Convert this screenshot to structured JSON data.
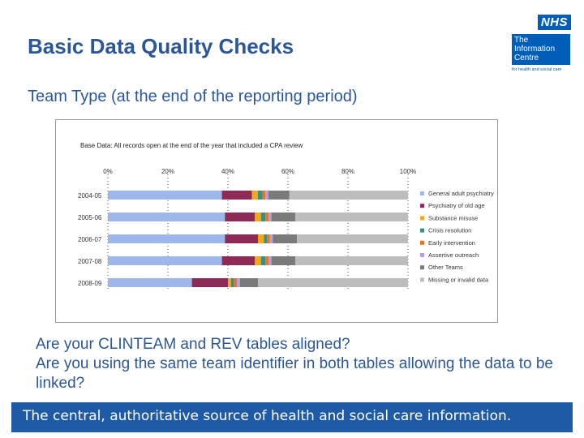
{
  "slide": {
    "title": "Basic Data Quality Checks",
    "subtitle": "Team Type (at the end of the reporting period)",
    "questions": [
      "Are your CLINTEAM and REV tables aligned?",
      "Are you using the same team identifier in both tables allowing the data to be linked?"
    ],
    "footer": "The central, authoritative source of health and social care information."
  },
  "logo": {
    "nhs": "NHS",
    "org_lines": [
      "The",
      "Information",
      "Centre"
    ],
    "tagline": "for health and social care"
  },
  "colors": {
    "title": "#2b5797",
    "footer_bg": "#1f5aa6",
    "nhs_blue": "#005eb8"
  },
  "chart_data": {
    "type": "bar",
    "orientation": "horizontal",
    "stacked": "percent",
    "title": "Base Data: All records open at the end of the year that included a CPA review",
    "categories": [
      "2004-05",
      "2005-06",
      "2006-07",
      "2007-08",
      "2008-09"
    ],
    "xticks": [
      "0%",
      "20%",
      "40%",
      "60%",
      "80%",
      "100%"
    ],
    "xlim": [
      0,
      100
    ],
    "legend_position": "right",
    "series": [
      {
        "name": "General adult psychiatry",
        "color": "#9eb7ea",
        "values": [
          38,
          39,
          39,
          38,
          28
        ]
      },
      {
        "name": "Psychiatry of old age",
        "color": "#8e2a56",
        "values": [
          10,
          10,
          11,
          11,
          12
        ]
      },
      {
        "name": "Substance misuse",
        "color": "#f2a81d",
        "values": [
          2,
          2,
          2,
          2,
          1
        ]
      },
      {
        "name": "Crisis resolution",
        "color": "#3b8f7f",
        "values": [
          1.5,
          1.5,
          1,
          1.5,
          1
        ]
      },
      {
        "name": "Early intervention",
        "color": "#e8742a",
        "values": [
          1,
          1,
          1,
          1,
          1
        ]
      },
      {
        "name": "Assertive outreach",
        "color": "#b59fdc",
        "values": [
          1,
          1,
          1,
          1,
          1
        ]
      },
      {
        "name": "Other Teams",
        "color": "#7a7a7a",
        "values": [
          7,
          8,
          8,
          8,
          6
        ]
      },
      {
        "name": "Missing or invalid data",
        "color": "#bdbdbd",
        "values": [
          39.5,
          37.5,
          37,
          37.5,
          50
        ]
      }
    ]
  }
}
